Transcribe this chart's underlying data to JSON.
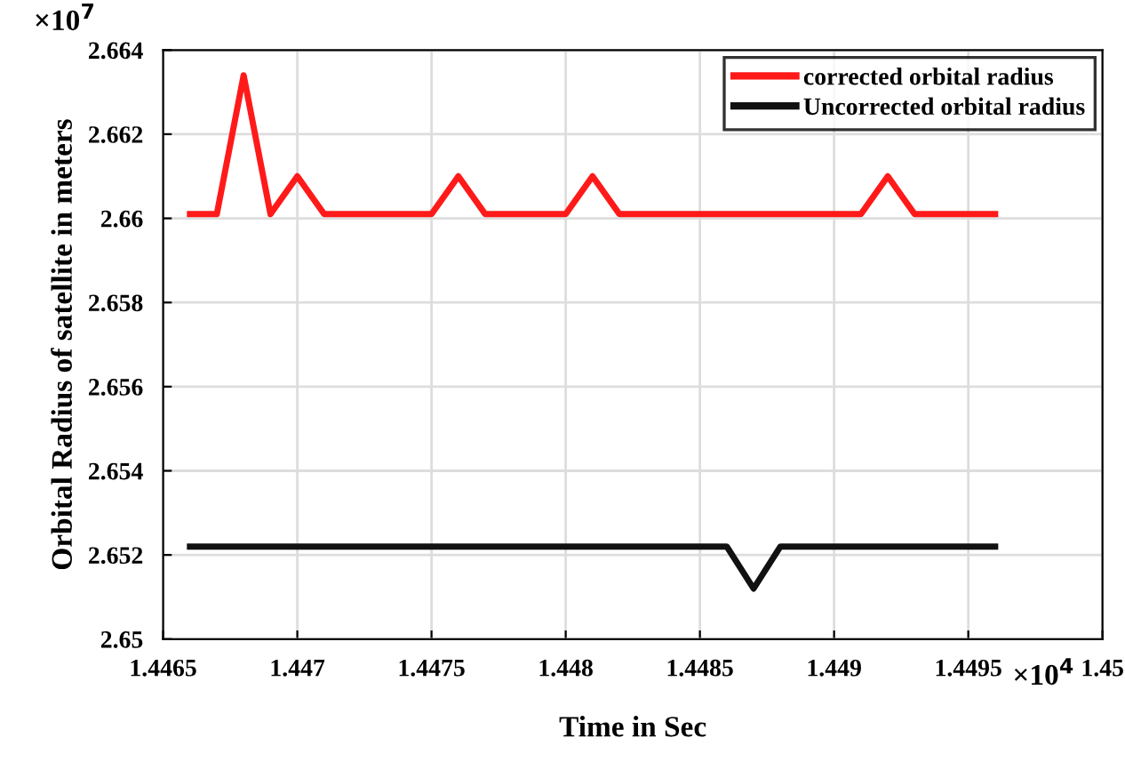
{
  "chart_data": {
    "type": "line",
    "xlabel": "Time in Sec",
    "ylabel": "Orbital Radius of satellite in meters",
    "annotations": [
      "×10$^{7}$",
      "×10$^{4}$"
    ],
    "x": [
      1.4466,
      1.4467,
      1.4468,
      1.4469,
      1.447,
      1.4471,
      1.4472,
      1.4473,
      1.4474,
      1.4475,
      1.4476,
      1.4477,
      1.4478,
      1.4479,
      1.448,
      1.4481,
      1.4482,
      1.4483,
      1.4484,
      1.4485,
      1.4486,
      1.4487,
      1.4488,
      1.4489,
      1.449,
      1.4491,
      1.4492,
      1.4493,
      1.4494,
      1.4495,
      1.4496
    ],
    "series": [
      {
        "name": "corrected orbital radius",
        "color": "#ff1a1a",
        "values": [
          2.6601,
          2.6601,
          2.6634,
          2.6601,
          2.661,
          2.6601,
          2.6601,
          2.6601,
          2.6601,
          2.6601,
          2.661,
          2.6601,
          2.6601,
          2.6601,
          2.6601,
          2.661,
          2.6601,
          2.6601,
          2.6601,
          2.6601,
          2.6601,
          2.6601,
          2.6601,
          2.6601,
          2.6601,
          2.6601,
          2.661,
          2.6601,
          2.6601,
          2.6601,
          2.6601
        ]
      },
      {
        "name": "Uncorrected orbital radius",
        "color": "#111111",
        "values": [
          2.6522,
          2.6522,
          2.6522,
          2.6522,
          2.6522,
          2.6522,
          2.6522,
          2.6522,
          2.6522,
          2.6522,
          2.6522,
          2.6522,
          2.6522,
          2.6522,
          2.6522,
          2.6522,
          2.6522,
          2.6522,
          2.6522,
          2.6522,
          2.6522,
          2.6512,
          2.6522,
          2.6522,
          2.6522,
          2.6522,
          2.6522,
          2.6522,
          2.6522,
          2.6522,
          2.6522
        ]
      }
    ],
    "xlim": [
      1.4465,
      1.45
    ],
    "xticks": [
      1.4465,
      1.447,
      1.4475,
      1.448,
      1.4485,
      1.449,
      1.4495,
      1.45
    ],
    "ylim": [
      2.65,
      2.664
    ],
    "yticks": [
      2.65,
      2.652,
      2.654,
      2.656,
      2.658,
      2.66,
      2.662,
      2.664
    ],
    "grid": true,
    "legend": "top right",
    "marker": "none",
    "line_style": "solid"
  }
}
